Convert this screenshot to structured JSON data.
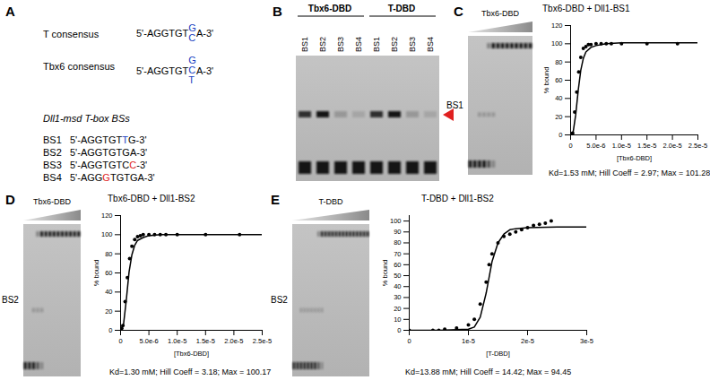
{
  "panels": {
    "A": {
      "label": "A",
      "consensus": [
        {
          "name": "T consensus",
          "prefix": "5'-AGGTGT",
          "variants": [
            "G",
            "C"
          ],
          "suffix": "A-3'",
          "color": "#2040c0"
        },
        {
          "name": "Tbx6 consensus",
          "prefix": "5'-AGGTGT",
          "variants": [
            "G",
            "C",
            "T"
          ],
          "suffix": "A-3'",
          "color": "#2040c0"
        }
      ],
      "bs_title": "Dll1-msd T-box BSs",
      "binding_sites": [
        {
          "name": "BS1",
          "segments": [
            {
              "text": "5'-AGGTGT"
            },
            {
              "text": "T",
              "color": "#2040c0"
            },
            {
              "text": "G-3'"
            }
          ]
        },
        {
          "name": "BS2",
          "segments": [
            {
              "text": "5'-AGGTGTGA-3'"
            }
          ]
        },
        {
          "name": "BS3",
          "segments": [
            {
              "text": "5'-AGGTGTC"
            },
            {
              "text": "C",
              "color": "#e02020"
            },
            {
              "text": "-3'"
            }
          ]
        },
        {
          "name": "BS4",
          "segments": [
            {
              "text": "5'-AGG"
            },
            {
              "text": "G",
              "color": "#e02020"
            },
            {
              "text": "TGTGA-3'"
            }
          ]
        }
      ]
    },
    "B": {
      "label": "B",
      "groups": [
        "Tbx6-DBD",
        "T-DBD"
      ],
      "lanes": [
        "BS1",
        "BS2",
        "BS3",
        "BS4"
      ],
      "arrow_color": "#e02020"
    }
  },
  "chart_data": [
    {
      "panel": "C",
      "type": "scatter",
      "gel_title": "Tbx6-DBD",
      "gel_lane": "BS1",
      "title": "Tbx6-DBD + Dll1-BS1",
      "x_label": "[Tbx6-DBD]",
      "y_label": "% bound",
      "caption": "Kd=1.53 mM; Hill Coeff = 2.97; Max = 101.28",
      "xlim": [
        0,
        2.5e-05
      ],
      "xticks": [
        0,
        {
          "value": 5e-06,
          "label": "5.0e-6"
        },
        {
          "value": 1e-05,
          "label": "1.0e-5"
        },
        {
          "value": 1.5e-05,
          "label": "1.5e-5"
        },
        {
          "value": 2e-05,
          "label": "2.0e-5"
        },
        {
          "value": 2.5e-05,
          "label": "2.5e-5"
        }
      ],
      "ylim": [
        0,
        120
      ],
      "yticks": [
        0,
        20,
        40,
        60,
        80,
        100,
        120
      ],
      "series": [
        {
          "type": "scatter",
          "marker": "circle",
          "color": "#000000",
          "x": [
            0,
            2e-07,
            4e-07,
            8e-07,
            1.2e-06,
            1.6e-06,
            2e-06,
            2.5e-06,
            3e-06,
            3.5e-06,
            4e-06,
            5e-06,
            6e-06,
            7e-06,
            8e-06,
            1e-05,
            1.5e-05,
            2.1e-05
          ],
          "values": [
            0,
            1,
            2,
            25,
            47,
            69,
            85,
            95,
            97,
            99,
            99,
            100,
            100,
            100,
            100,
            100,
            100,
            100
          ]
        },
        {
          "type": "line",
          "line_style": "solid",
          "color": "#000000",
          "x": [
            0,
            5e-07,
            1e-06,
            1.5e-06,
            2e-06,
            2.5e-06,
            3e-06,
            4e-06,
            5e-06,
            7e-06,
            1e-05,
            1.5e-05,
            2.5e-05
          ],
          "values": [
            0,
            3,
            22,
            49,
            71,
            84,
            91,
            96,
            98,
            100,
            101,
            101,
            101
          ]
        }
      ]
    },
    {
      "panel": "D",
      "type": "scatter",
      "gel_title": "Tbx6-DBD",
      "gel_lane": "BS2",
      "title": "Tbx6-DBD + Dll1-BS2",
      "x_label": "[Tbx6-DBD]",
      "y_label": "% bound",
      "caption": "Kd=1.30 mM; Hill Coeff = 3.18; Max = 100.17",
      "xlim": [
        0,
        2.5e-05
      ],
      "xticks": [
        0,
        {
          "value": 5e-06,
          "label": "5.0e-6"
        },
        {
          "value": 1e-05,
          "label": "1.0e-5"
        },
        {
          "value": 1.5e-05,
          "label": "1.5e-5"
        },
        {
          "value": 2e-05,
          "label": "2.0e-5"
        },
        {
          "value": 2.5e-05,
          "label": "2.5e-5"
        }
      ],
      "ylim": [
        0,
        120
      ],
      "yticks": [
        0,
        20,
        40,
        60,
        80,
        100,
        120
      ],
      "series": [
        {
          "type": "scatter",
          "marker": "circle",
          "color": "#000000",
          "x": [
            0,
            2e-07,
            4e-07,
            8e-07,
            1.2e-06,
            1.6e-06,
            2e-06,
            2.5e-06,
            3e-06,
            3.5e-06,
            4e-06,
            5e-06,
            6e-06,
            7e-06,
            8e-06,
            1e-05,
            1.5e-05,
            2.1e-05
          ],
          "values": [
            0,
            2,
            5,
            30,
            55,
            75,
            88,
            95,
            98,
            99,
            100,
            100,
            100,
            100,
            100,
            100,
            100,
            100
          ]
        },
        {
          "type": "line",
          "line_style": "solid",
          "color": "#000000",
          "x": [
            0,
            5e-07,
            1e-06,
            1.5e-06,
            2e-06,
            2.5e-06,
            3e-06,
            4e-06,
            5e-06,
            7e-06,
            1e-05,
            1.5e-05,
            2.5e-05
          ],
          "values": [
            0,
            5,
            31,
            61,
            79,
            89,
            94,
            97,
            99,
            100,
            100,
            100,
            100
          ]
        }
      ]
    },
    {
      "panel": "E",
      "type": "scatter",
      "gel_title": "T-DBD",
      "gel_lane": "BS2",
      "title": "T-DBD + Dll1-BS2",
      "x_label": "[T-DBD]",
      "y_label": "% bound",
      "caption": "Kd=13.88 mM; Hill Coeff = 14.42; Max = 94.45",
      "xlim": [
        0,
        3e-05
      ],
      "xticks": [
        0,
        {
          "value": 1e-05,
          "label": "1e-5"
        },
        {
          "value": 2e-05,
          "label": "2e-5"
        },
        {
          "value": 3e-05,
          "label": "3e-5"
        }
      ],
      "ylim": [
        0,
        105
      ],
      "yticks": [
        0,
        10,
        20,
        30,
        40,
        50,
        60,
        70,
        80,
        90,
        100
      ],
      "series": [
        {
          "type": "scatter",
          "marker": "circle",
          "color": "#000000",
          "x": [
            0,
            4e-06,
            5e-06,
            6e-06,
            8e-06,
            1e-05,
            1.1e-05,
            1.2e-05,
            1.3e-05,
            1.35e-05,
            1.4e-05,
            1.5e-05,
            1.6e-05,
            1.7e-05,
            1.8e-05,
            1.9e-05,
            2e-05,
            2.1e-05,
            2.2e-05,
            2.3e-05,
            2.4e-05
          ],
          "values": [
            0,
            0,
            0,
            1,
            2,
            5,
            10,
            24,
            44,
            60,
            70,
            80,
            86,
            88,
            90,
            92,
            94,
            96,
            97,
            98,
            100
          ]
        },
        {
          "type": "line",
          "line_style": "solid",
          "color": "#000000",
          "x": [
            0,
            5e-06,
            1e-05,
            1.1e-05,
            1.2e-05,
            1.3e-05,
            1.4e-05,
            1.5e-05,
            1.6e-05,
            1.7e-05,
            1.8e-05,
            2e-05,
            2.5e-05,
            3e-05
          ],
          "values": [
            0,
            0,
            1,
            3,
            12,
            34,
            63,
            80,
            88,
            92,
            93,
            94,
            94.5,
            94.5
          ]
        }
      ]
    }
  ]
}
